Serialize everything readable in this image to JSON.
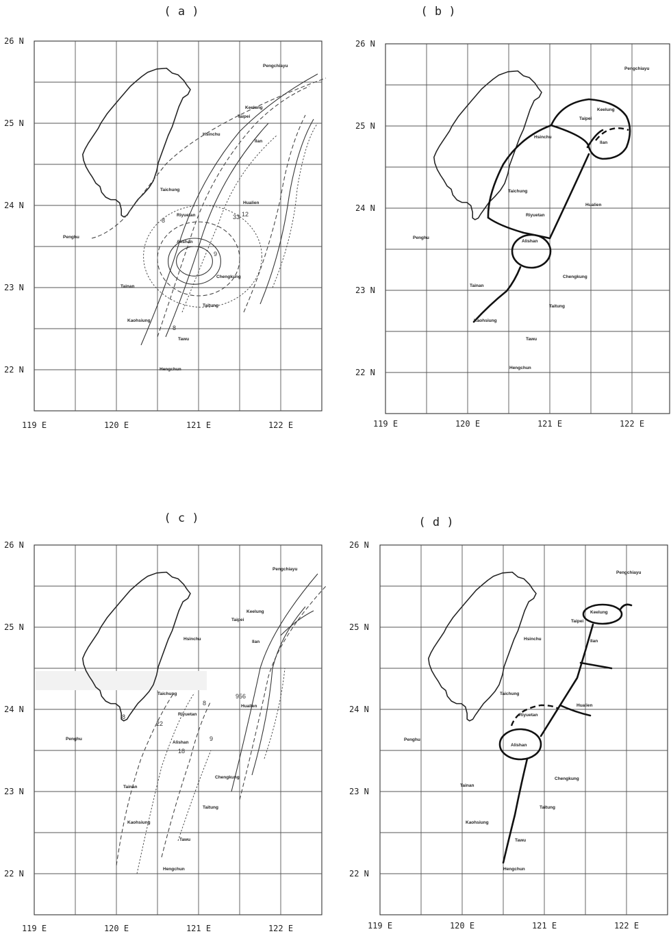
{
  "panels": [
    {
      "id": "a",
      "title": "( a )",
      "lat_labels": [
        "26 N",
        "25 N",
        "24 N",
        "23 N",
        "22 N"
      ],
      "lon_labels": [
        "119 E",
        "120 E",
        "121 E",
        "122 E"
      ],
      "stations": [
        "Pengchiayu",
        "Keelung",
        "Taipei",
        "Hsinchu",
        "Ilan",
        "Taichung",
        "Hualien",
        "Penghu",
        "Riyuetan",
        "Alishan",
        "Tainan",
        "Chengkung",
        "Taitung",
        "Kaohsiung",
        "Tawu",
        "Hengchun"
      ],
      "contour_labels": [
        "8",
        "33",
        "12",
        "9",
        "8"
      ]
    },
    {
      "id": "b",
      "title": "( b )",
      "lat_labels": [
        "26 N",
        "25 N",
        "24 N",
        "23 N",
        "22 N"
      ],
      "lon_labels": [
        "119 E",
        "120 E",
        "121 E",
        "122 E"
      ],
      "stations": [
        "Pengchiayu",
        "Keelung",
        "Taipei",
        "Hsinchu",
        "Ilan",
        "Taichung",
        "Hualien",
        "Riyuetan",
        "Penghu",
        "Alishan",
        "Tainan",
        "Chengkung",
        "Taitung",
        "Kaohsiung",
        "Tawu",
        "Hengchun"
      ]
    },
    {
      "id": "c",
      "title": "( c )",
      "lat_labels": [
        "26 N",
        "25 N",
        "24 N",
        "23 N",
        "22 N"
      ],
      "lon_labels": [
        "119 E",
        "120 E",
        "121 E",
        "122 E"
      ],
      "stations": [
        "Pengchiayu",
        "Keelung",
        "Taipei",
        "Hsinchu",
        "Ilan",
        "Taichung",
        "Hualien",
        "Riyuetan",
        "Penghu",
        "Alishan",
        "Tainan",
        "Chengkung",
        "Taitung",
        "Kaohsiung",
        "Tawu",
        "Hengchun"
      ],
      "contour_labels": [
        "8",
        "22",
        "8",
        "956",
        "18",
        "9"
      ]
    },
    {
      "id": "d",
      "title": "( d )",
      "lat_labels": [
        "26 N",
        "25 N",
        "24 N",
        "23 N",
        "22 N"
      ],
      "lon_labels": [
        "119 E",
        "120 E",
        "121 E",
        "122 E"
      ],
      "stations": [
        "Pengchiayu",
        "Keelung",
        "Taipei",
        "Hsinchu",
        "Ilan",
        "Taichung",
        "Hualien",
        "Riyuetan",
        "Penghu",
        "Alishan",
        "Tainan",
        "Chengkung",
        "Taitung",
        "Kaohsiung",
        "Tawu",
        "Hengchun"
      ]
    }
  ]
}
